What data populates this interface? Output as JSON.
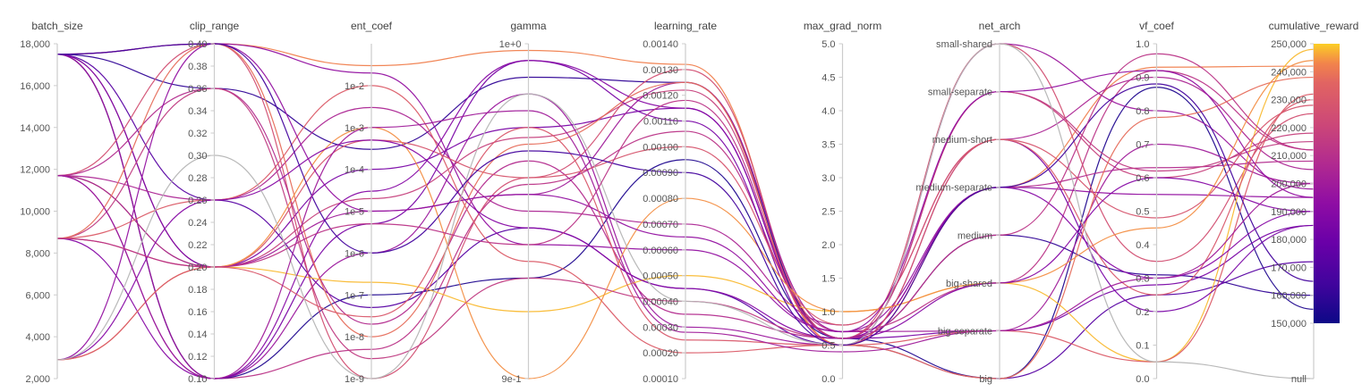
{
  "chart_data": {
    "type": "parallel_coordinates",
    "axes": [
      {
        "key": "batch_size",
        "label": "batch_size",
        "scale": "linear",
        "range": [
          2000,
          18000
        ],
        "ticks": [
          "2,000",
          "4,000",
          "6,000",
          "8,000",
          "10,000",
          "12,000",
          "14,000",
          "16,000",
          "18,000"
        ]
      },
      {
        "key": "clip_range",
        "label": "clip_range",
        "scale": "linear",
        "range": [
          0.1,
          0.4
        ],
        "ticks": [
          "0.10",
          "0.12",
          "0.14",
          "0.16",
          "0.18",
          "0.20",
          "0.22",
          "0.24",
          "0.26",
          "0.28",
          "0.30",
          "0.32",
          "0.34",
          "0.36",
          "0.38",
          "0.40"
        ]
      },
      {
        "key": "ent_coef",
        "label": "ent_coef",
        "scale": "log",
        "range": [
          1e-09,
          0.1
        ],
        "ticks": [
          "1e-9",
          "1e-8",
          "1e-7",
          "1e-6",
          "1e-5",
          "1e-4",
          "1e-3",
          "1e-2"
        ]
      },
      {
        "key": "gamma",
        "label": "gamma",
        "scale": "linear",
        "range": [
          0.9,
          1.0
        ],
        "ticks": [
          "9e-1",
          "1e+0"
        ]
      },
      {
        "key": "learning_rate",
        "label": "learning_rate",
        "scale": "linear",
        "range": [
          0.0001,
          0.0014
        ],
        "ticks": [
          "0.00010",
          "0.00020",
          "0.00030",
          "0.00040",
          "0.00050",
          "0.00060",
          "0.00070",
          "0.00080",
          "0.00090",
          "0.00100",
          "0.00110",
          "0.00120",
          "0.00130",
          "0.00140"
        ]
      },
      {
        "key": "max_grad_norm",
        "label": "max_grad_norm",
        "scale": "linear",
        "range": [
          0,
          5
        ],
        "ticks": [
          "0.0",
          "0.5",
          "1.0",
          "1.5",
          "2.0",
          "2.5",
          "3.0",
          "3.5",
          "4.0",
          "4.5",
          "5.0"
        ]
      },
      {
        "key": "net_arch",
        "label": "net_arch",
        "scale": "categorical",
        "categories": [
          "big",
          "big-separate",
          "big-shared",
          "medium",
          "medium-separate",
          "medium-short",
          "small-separate",
          "small-shared"
        ],
        "ticks": [
          "big",
          "big-separate",
          "big-shared",
          "medium",
          "medium-separate",
          "medium-short",
          "small-separate",
          "small-shared"
        ]
      },
      {
        "key": "vf_coef",
        "label": "vf_coef",
        "scale": "linear",
        "range": [
          0,
          1
        ],
        "ticks": [
          "0.0",
          "0.1",
          "0.2",
          "0.3",
          "0.4",
          "0.5",
          "0.6",
          "0.7",
          "0.8",
          "0.9",
          "1.0"
        ]
      },
      {
        "key": "cumulative_reward",
        "label": "cumulative_reward",
        "scale": "linear",
        "range": [
          150000,
          250000
        ],
        "ticks": [
          "null",
          "150,000",
          "160,000",
          "170,000",
          "180,000",
          "190,000",
          "200,000",
          "210,000",
          "220,000",
          "230,000",
          "240,000",
          "250,000"
        ]
      }
    ],
    "colorbar": {
      "colormap": "plasma",
      "range": [
        150000,
        250000
      ]
    },
    "runs": [
      [
        17500,
        0.4,
        0.03,
        0.998,
        0.00132,
        0.5,
        "medium-separate",
        0.93,
        242000
      ],
      [
        17500,
        0.2,
        2e-05,
        0.972,
        0.00122,
        0.6,
        "small-separate",
        0.6,
        218000
      ],
      [
        17500,
        0.1,
        5e-09,
        0.958,
        0.00106,
        0.7,
        "big-shared",
        0.92,
        212000
      ],
      [
        17500,
        0.1,
        1e-07,
        0.93,
        0.00095,
        0.6,
        "big",
        0.87,
        155000
      ],
      [
        17500,
        0.36,
        0.0003,
        0.99,
        0.00125,
        0.6,
        "medium",
        0.31,
        160000
      ],
      [
        17500,
        0.26,
        5e-08,
        0.945,
        0.00045,
        0.5,
        "big",
        0.25,
        172000
      ],
      [
        17500,
        0.4,
        0.02,
        0.94,
        0.0006,
        0.7,
        "medium-separate",
        0.55,
        195000
      ],
      [
        17500,
        0.1,
        1e-06,
        0.985,
        0.0003,
        0.5,
        "small-shared",
        0.8,
        198000
      ],
      [
        17500,
        0.2,
        0.0001,
        0.975,
        0.00115,
        0.6,
        "big-separate",
        0.28,
        185000
      ],
      [
        11700,
        0.26,
        0.003,
        0.95,
        0.0007,
        0.8,
        "medium-short",
        0.9,
        205000
      ],
      [
        11700,
        0.4,
        1e-09,
        0.96,
        0.0013,
        0.6,
        "small-shared",
        0.35,
        225000
      ],
      [
        11700,
        0.2,
        2e-07,
        0.92,
        0.0005,
        1.0,
        "big-shared",
        0.05,
        248000
      ],
      [
        11700,
        0.1,
        5e-06,
        0.995,
        0.0011,
        0.5,
        "medium-short",
        0.2,
        185000
      ],
      [
        11700,
        0.36,
        2e-08,
        0.965,
        0.00035,
        0.6,
        "medium-separate",
        0.63,
        208000
      ],
      [
        11700,
        0.2,
        1e-05,
        0.955,
        0.00125,
        0.7,
        "big-separate",
        0.7,
        200000
      ],
      [
        8700,
        0.26,
        0.01,
        0.935,
        0.0002,
        0.5,
        "big-separate",
        0.05,
        232000
      ],
      [
        8700,
        0.2,
        0.0005,
        0.96,
        0.001,
        0.8,
        "medium-short",
        0.48,
        228000
      ],
      [
        8700,
        0.36,
        3e-09,
        0.93,
        0.0004,
        0.6,
        "small-separate",
        0.62,
        215000
      ],
      [
        8700,
        0.1,
        3e-05,
        0.995,
        0.00115,
        0.6,
        "medium-separate",
        0.3,
        190000
      ],
      [
        8700,
        0.4,
        1e-08,
        0.97,
        0.00125,
        0.5,
        "big",
        0.78,
        238000
      ],
      [
        2900,
        0.2,
        0.001,
        0.9,
        0.0008,
        1.0,
        "big-shared",
        0.45,
        244000
      ],
      [
        2900,
        0.26,
        0.0005,
        0.945,
        0.00045,
        0.6,
        "big-shared",
        0.6,
        190000
      ],
      [
        2900,
        0.4,
        1e-05,
        0.955,
        0.00065,
        0.7,
        "small-separate",
        0.92,
        195000
      ],
      [
        2900,
        0.2,
        3e-08,
        0.975,
        0.00025,
        0.5,
        "medium-short",
        0.25,
        230000
      ],
      [
        2900,
        0.3,
        1e-09,
        0.985,
        0.0004,
        0.5,
        "small-shared",
        0.05,
        null
      ],
      [
        17500,
        0.4,
        1e-06,
        0.968,
        0.0009,
        0.5,
        "medium-separate",
        0.88,
        165000
      ],
      [
        11700,
        0.1,
        0.001,
        0.98,
        0.00028,
        0.4,
        "big-separate",
        0.3,
        200000
      ],
      [
        8700,
        0.2,
        5e-06,
        0.94,
        0.00118,
        0.6,
        "medium",
        0.97,
        212000
      ]
    ]
  }
}
